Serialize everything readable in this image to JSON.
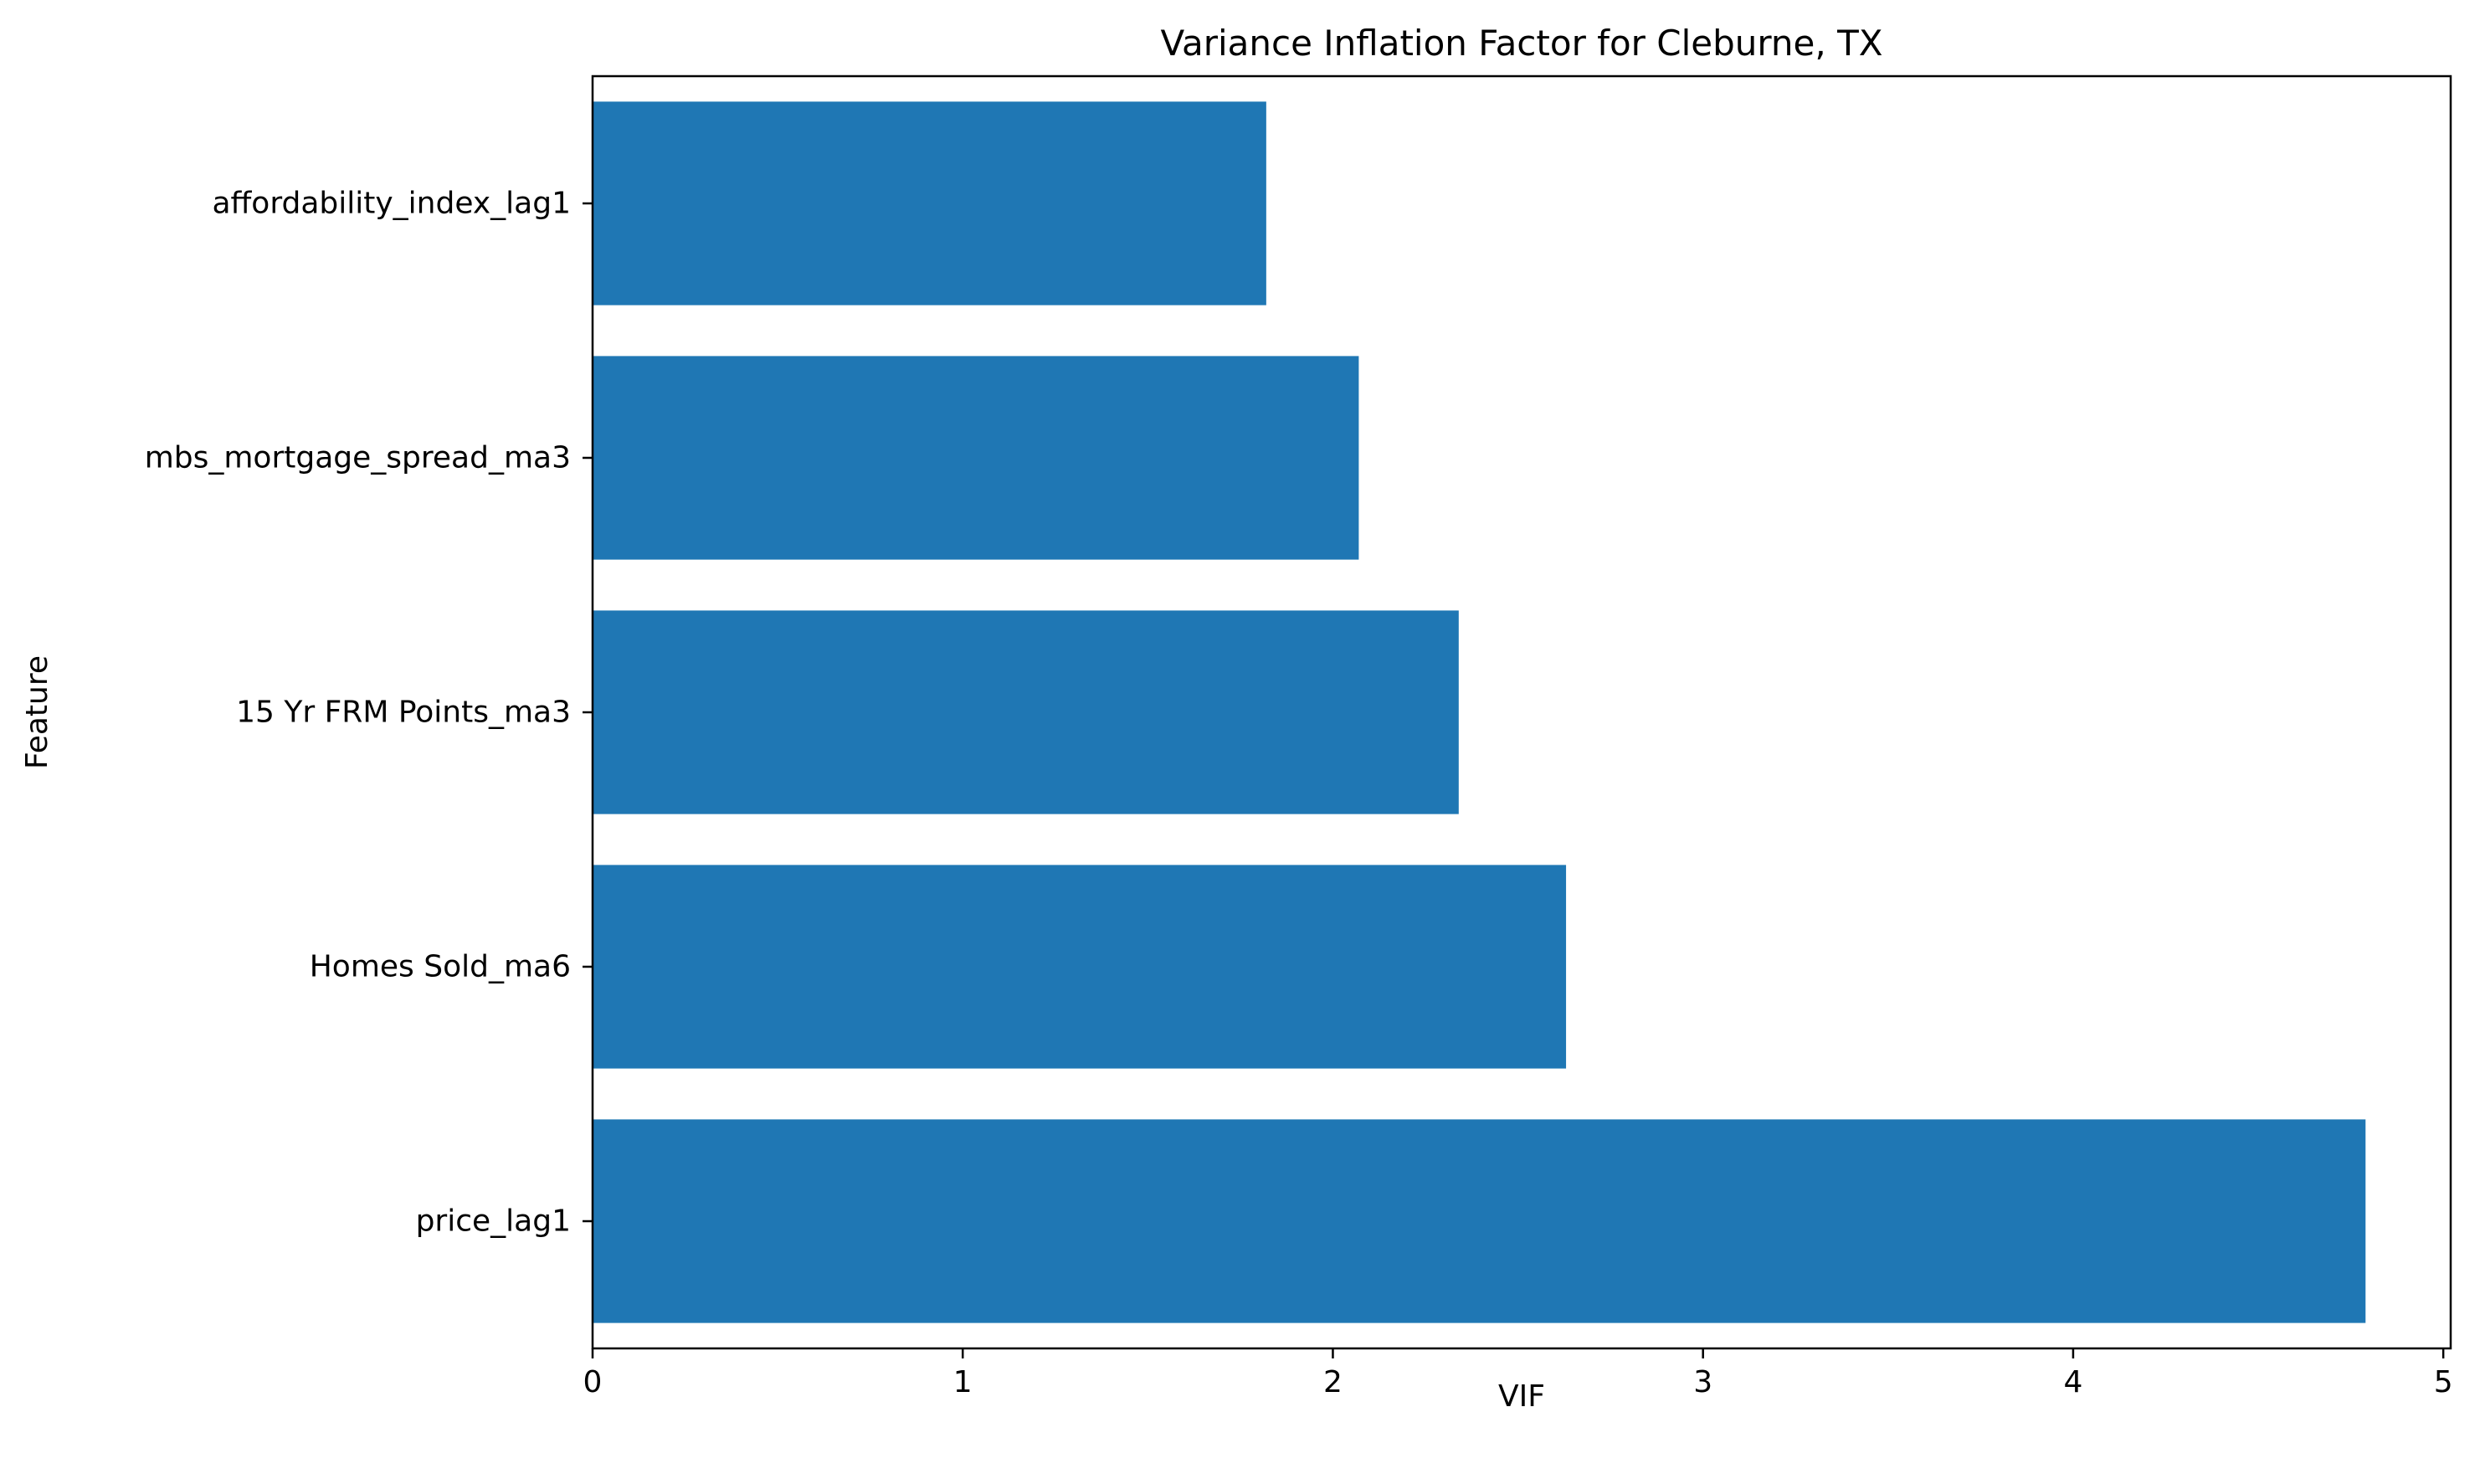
{
  "chart_data": {
    "type": "bar",
    "orientation": "horizontal",
    "title": "Variance Inflation Factor for Cleburne, TX",
    "xlabel": "VIF",
    "ylabel": "Feature",
    "categories": [
      "price_lag1",
      "Homes Sold_ma6",
      "15 Yr FRM Points_ma3",
      "mbs_mortgage_spread_ma3",
      "affordability_index_lag1"
    ],
    "values": [
      4.79,
      2.63,
      2.34,
      2.07,
      1.82
    ],
    "xlim": [
      0,
      5.02
    ],
    "xticks": [
      0,
      1,
      2,
      3,
      4,
      5
    ],
    "grid": false,
    "bar_color": "#1f77b4"
  }
}
